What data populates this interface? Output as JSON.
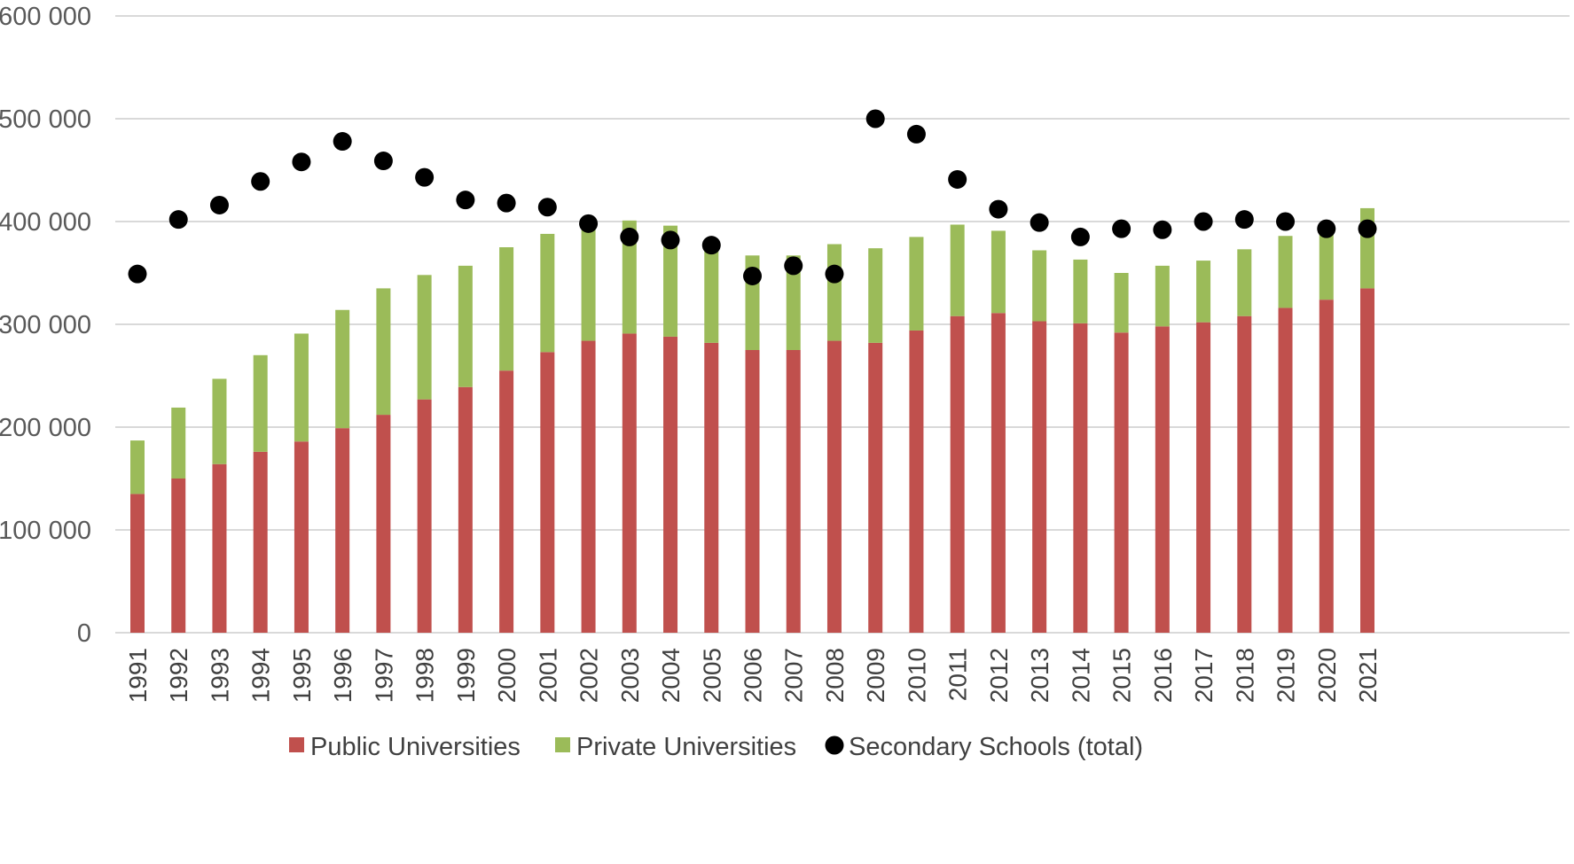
{
  "chart_data": {
    "type": "bar",
    "stacked": true,
    "title": "",
    "xlabel": "",
    "ylabel": "",
    "ylim": [
      0,
      600000
    ],
    "y_ticks": [
      0,
      100000,
      200000,
      300000,
      400000,
      500000,
      600000
    ],
    "y_tick_labels": [
      "0",
      "100 000",
      "200 000",
      "300 000",
      "400 000",
      "500 000",
      "600 000"
    ],
    "grid": true,
    "legend_position": "bottom",
    "categories": [
      "1991",
      "1992",
      "1993",
      "1994",
      "1995",
      "1996",
      "1997",
      "1998",
      "1999",
      "2000",
      "2001",
      "2002",
      "2003",
      "2004",
      "2005",
      "2006",
      "2007",
      "2008",
      "2009",
      "2010",
      "2011",
      "2012",
      "2013",
      "2014",
      "2015",
      "2016",
      "2017",
      "2018",
      "2019",
      "2020",
      "2021"
    ],
    "series": [
      {
        "name": "Public Universities",
        "kind": "bar",
        "color": "#C0504D",
        "values": [
          135000,
          150000,
          164000,
          176000,
          186000,
          199000,
          212000,
          227000,
          239000,
          255000,
          273000,
          284000,
          291000,
          288000,
          282000,
          275000,
          275000,
          284000,
          282000,
          294000,
          308000,
          311000,
          303000,
          301000,
          292000,
          298000,
          302000,
          308000,
          316000,
          324000,
          335000
        ]
      },
      {
        "name": "Private Universities",
        "kind": "bar",
        "color": "#9BBB59",
        "values": [
          52000,
          69000,
          83000,
          94000,
          105000,
          115000,
          123000,
          121000,
          118000,
          120000,
          115000,
          116000,
          110000,
          108000,
          97000,
          92000,
          92000,
          94000,
          92000,
          91000,
          89000,
          80000,
          69000,
          62000,
          58000,
          59000,
          60000,
          65000,
          70000,
          70000,
          78000
        ]
      },
      {
        "name": "Secondary Schools (total)",
        "kind": "scatter",
        "color": "#000000",
        "values": [
          349000,
          402000,
          416000,
          439000,
          458000,
          478000,
          459000,
          443000,
          421000,
          418000,
          414000,
          398000,
          385000,
          382000,
          377000,
          347000,
          357000,
          349000,
          500000,
          485000,
          441000,
          412000,
          399000,
          385000,
          393000,
          392000,
          400000,
          402000,
          400000,
          393000,
          393000
        ]
      }
    ]
  }
}
